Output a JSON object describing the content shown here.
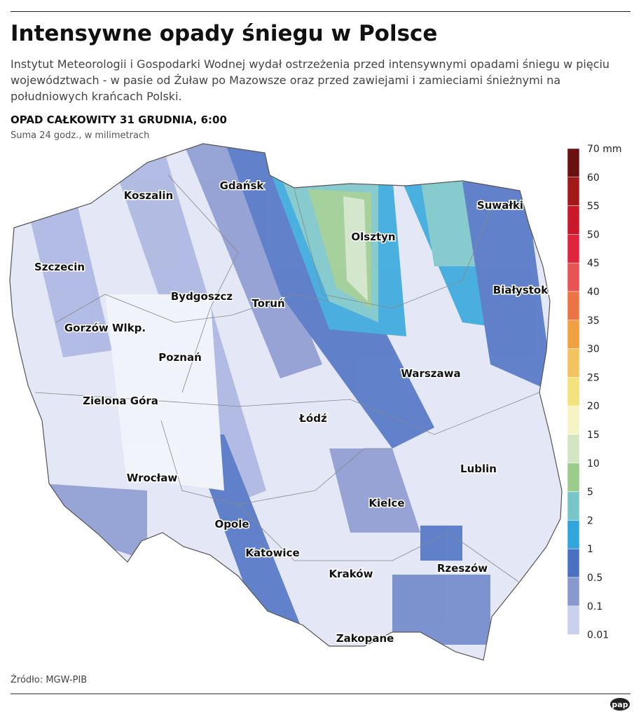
{
  "header": {
    "title": "Intensywne opady śniegu w Polsce",
    "description": "Instytut Meteorologii i Gospodarki Wodnej wydał ostrzeżenia przed intensywnymi opadami śniegu w pięciu województwach - w pasie od Żuław po Mazowsze oraz przed zawiejami i zamieciami śnieżnymi na południowych krańcach Polski.",
    "map_title": "OPAD CAŁKOWITY 31 GRUDNIA, 6:00",
    "map_subtitle": "Suma 24 godz., w milimetrach"
  },
  "cities": [
    "Gdańsk",
    "Koszalin",
    "Suwałki",
    "Olsztyn",
    "Szczecin",
    "Białystok",
    "Bydgoszcz",
    "Toruń",
    "Gorzów Wlkp.",
    "Poznań",
    "Warszawa",
    "Zielona Góra",
    "Łódź",
    "Lublin",
    "Wrocław",
    "Kielce",
    "Opole",
    "Katowice",
    "Rzeszów",
    "Kraków",
    "Zakopane"
  ],
  "legend": {
    "labels": [
      "70 mm",
      "60",
      "55",
      "50",
      "45",
      "40",
      "35",
      "30",
      "25",
      "20",
      "15",
      "10",
      "5",
      "2",
      "1",
      "0.5",
      "0.1",
      "0.01"
    ],
    "colors": [
      "#6b1010",
      "#a31818",
      "#c8182a",
      "#e0243c",
      "#e85454",
      "#ec7444",
      "#f0a040",
      "#f4c25e",
      "#f3e27e",
      "#f4f4c4",
      "#d2e6c4",
      "#9ccc8c",
      "#78c6c8",
      "#30a6dc",
      "#4a70c2",
      "#8a98d0",
      "#c9d1ec"
    ]
  },
  "footer": {
    "source": "Źródło: MGW-PIB",
    "logo": "pap"
  }
}
